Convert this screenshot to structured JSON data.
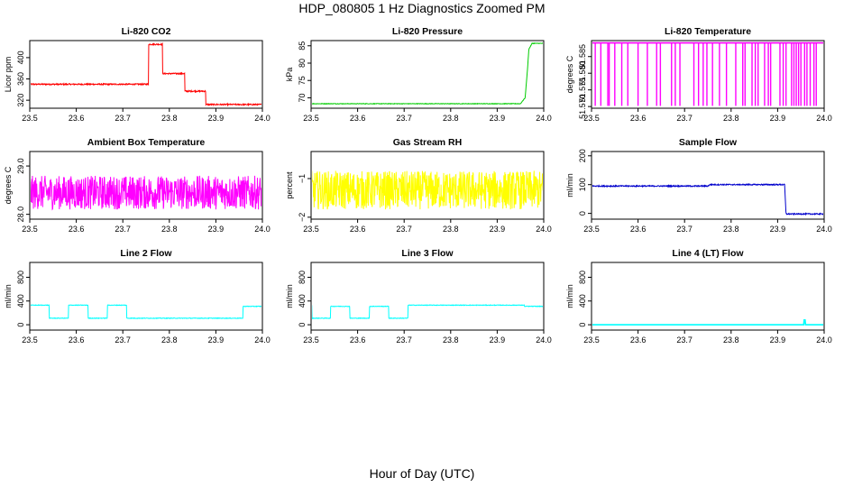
{
  "figure": {
    "title": "HDP_080805  1 Hz Diagnostics Zoomed PM",
    "xlabel": "Hour of Day (UTC)"
  },
  "chart_data": [
    {
      "type": "line",
      "title": "Li-820 CO2",
      "ylabel": "Licor ppm",
      "color": "#ff0000",
      "xlim": [
        23.5,
        24.0
      ],
      "ylim": [
        305,
        432
      ],
      "x_ticks": [
        "23.5",
        "23.6",
        "23.7",
        "23.8",
        "23.9",
        "24.0"
      ],
      "y_ticks": [
        320,
        360,
        400
      ],
      "y_tick_labels": [
        "320",
        "360",
        "400"
      ],
      "noise": 1.2,
      "spikes": [],
      "series": [
        {
          "x": [
            23.5,
            23.755,
            23.755,
            23.785,
            23.785,
            23.833,
            23.833,
            23.878,
            23.878,
            24.0
          ],
          "values": [
            350,
            350,
            425,
            425,
            370,
            370,
            337,
            337,
            312,
            312
          ]
        }
      ]
    },
    {
      "type": "line",
      "title": "Li-820 Pressure",
      "ylabel": "kPa",
      "color": "#00cc00",
      "xlim": [
        23.5,
        24.0
      ],
      "ylim": [
        67,
        86.5
      ],
      "x_ticks": [
        "23.5",
        "23.6",
        "23.7",
        "23.8",
        "23.9",
        "24.0"
      ],
      "y_ticks": [
        70,
        75,
        80,
        85
      ],
      "y_tick_labels": [
        "70",
        "75",
        "80",
        "85"
      ],
      "noise": 0.08,
      "spikes": [],
      "series": [
        {
          "x": [
            23.5,
            23.95,
            23.96,
            23.965,
            23.968,
            23.975,
            24.0
          ],
          "values": [
            68.3,
            68.3,
            70,
            78,
            84,
            85.7,
            85.7
          ]
        }
      ]
    },
    {
      "type": "line",
      "title": "Li-820 Temperature",
      "ylabel": "degrees C",
      "color": "#ff00ff",
      "xlim": [
        23.5,
        24.0
      ],
      "ylim": [
        51.5695,
        51.5898
      ],
      "x_ticks": [
        "23.5",
        "23.6",
        "23.7",
        "23.8",
        "23.9",
        "24.0"
      ],
      "y_ticks": [
        51.57,
        51.575,
        51.58,
        51.585
      ],
      "y_tick_labels": [
        "51.570",
        "51.575",
        "51.580",
        "51.585"
      ],
      "noise": 0,
      "spikes": [
        23.508,
        23.52,
        23.535,
        23.538,
        23.55,
        23.565,
        23.578,
        23.6,
        23.62,
        23.64,
        23.648,
        23.672,
        23.68,
        23.69,
        23.72,
        23.73,
        23.74,
        23.748,
        23.76,
        23.775,
        23.79,
        23.81,
        23.825,
        23.83,
        23.845,
        23.852,
        23.858,
        23.872,
        23.88,
        23.885,
        23.905,
        23.912,
        23.918,
        23.93,
        23.935,
        23.94,
        23.945,
        23.95,
        23.958,
        23.963,
        23.97,
        23.978,
        23.983
      ],
      "spike_low": 51.5702,
      "series": [
        {
          "x": [
            23.5,
            24.0
          ],
          "values": [
            51.5891,
            51.5891
          ]
        }
      ]
    },
    {
      "type": "line",
      "title": "Ambient Box Temperature",
      "ylabel": "degrees C",
      "color": "#ff00ff",
      "xlim": [
        23.5,
        24.0
      ],
      "ylim": [
        27.9,
        29.3
      ],
      "x_ticks": [
        "23.5",
        "23.6",
        "23.7",
        "23.8",
        "23.9",
        "24.0"
      ],
      "y_ticks": [
        28.0,
        29.0
      ],
      "y_tick_labels": [
        "28.0",
        "29.0"
      ],
      "noise": 0.35,
      "spikes": [],
      "series": [
        {
          "x": [
            23.5,
            24.0
          ],
          "values": [
            28.45,
            28.45
          ]
        }
      ]
    },
    {
      "type": "line",
      "title": "Gas Stream RH",
      "ylabel": "percent",
      "color": "#ffff00",
      "xlim": [
        23.5,
        24.0
      ],
      "ylim": [
        -2.05,
        -0.3
      ],
      "x_ticks": [
        "23.5",
        "23.6",
        "23.7",
        "23.8",
        "23.9",
        "24.0"
      ],
      "y_ticks": [
        -2,
        -1
      ],
      "y_tick_labels": [
        "−2",
        "−1"
      ],
      "noise": 0.5,
      "spikes": [],
      "series": [
        {
          "x": [
            23.5,
            24.0
          ],
          "values": [
            -1.3,
            -1.3
          ]
        }
      ]
    },
    {
      "type": "line",
      "title": "Sample Flow",
      "ylabel": "ml/min",
      "color": "#0000cc",
      "xlim": [
        23.5,
        24.0
      ],
      "ylim": [
        -20,
        215
      ],
      "x_ticks": [
        "23.5",
        "23.6",
        "23.7",
        "23.8",
        "23.9",
        "24.0"
      ],
      "y_ticks": [
        0,
        100,
        200
      ],
      "y_tick_labels": [
        "0",
        "100",
        "200"
      ],
      "noise": 2,
      "spikes": [],
      "series": [
        {
          "x": [
            23.5,
            23.75,
            23.755,
            23.915,
            23.918,
            24.0
          ],
          "values": [
            95,
            95,
            100,
            100,
            -2,
            -2
          ]
        }
      ]
    },
    {
      "type": "line",
      "title": "Line 2 Flow",
      "ylabel": "ml/min",
      "color": "#00ffff",
      "xlim": [
        23.5,
        24.0
      ],
      "ylim": [
        -90,
        1050
      ],
      "x_ticks": [
        "23.5",
        "23.6",
        "23.7",
        "23.8",
        "23.9",
        "24.0"
      ],
      "y_ticks": [
        0,
        400,
        800
      ],
      "y_tick_labels": [
        "0",
        "400",
        "800"
      ],
      "noise": 5,
      "spikes": [],
      "series": [
        {
          "x": [
            23.5,
            23.5,
            23.542,
            23.542,
            23.583,
            23.583,
            23.625,
            23.625,
            23.667,
            23.667,
            23.708,
            23.708,
            23.958,
            23.958,
            24.0
          ],
          "values": [
            120,
            330,
            330,
            110,
            110,
            330,
            330,
            110,
            110,
            330,
            330,
            110,
            110,
            310,
            310
          ]
        }
      ]
    },
    {
      "type": "line",
      "title": "Line 3 Flow",
      "ylabel": "ml/min",
      "color": "#00ffff",
      "xlim": [
        23.5,
        24.0
      ],
      "ylim": [
        -90,
        1050
      ],
      "x_ticks": [
        "23.5",
        "23.6",
        "23.7",
        "23.8",
        "23.9",
        "24.0"
      ],
      "y_ticks": [
        0,
        400,
        800
      ],
      "y_tick_labels": [
        "0",
        "400",
        "800"
      ],
      "noise": 5,
      "spikes": [],
      "series": [
        {
          "x": [
            23.5,
            23.502,
            23.502,
            23.542,
            23.542,
            23.583,
            23.583,
            23.625,
            23.625,
            23.667,
            23.667,
            23.708,
            23.708,
            23.958,
            23.958,
            24.0
          ],
          "values": [
            310,
            310,
            110,
            110,
            310,
            310,
            110,
            110,
            310,
            310,
            110,
            110,
            330,
            330,
            310,
            310
          ]
        }
      ]
    },
    {
      "type": "line",
      "title": "Line 4 (LT) Flow",
      "ylabel": "ml/min",
      "color": "#00ffff",
      "xlim": [
        23.5,
        24.0
      ],
      "ylim": [
        -90,
        1050
      ],
      "x_ticks": [
        "23.5",
        "23.6",
        "23.7",
        "23.8",
        "23.9",
        "24.0"
      ],
      "y_ticks": [
        0,
        400,
        800
      ],
      "y_tick_labels": [
        "0",
        "400",
        "800"
      ],
      "noise": 0,
      "spikes": [],
      "series": [
        {
          "x": [
            23.5,
            23.956,
            23.957,
            23.959,
            23.96,
            24.0
          ],
          "values": [
            0,
            0,
            80,
            80,
            0,
            0
          ]
        }
      ]
    }
  ]
}
